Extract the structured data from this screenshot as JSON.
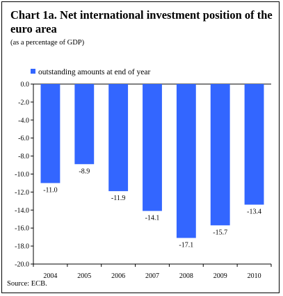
{
  "title": "Chart 1a. Net international investment position of the euro area",
  "subtitle": "(as a percentage of GDP)",
  "source": "Source: ECB.",
  "colors": {
    "bar": "#3366ff",
    "axis": "#000000"
  },
  "chart_data": {
    "type": "bar",
    "title": "Chart 1a. Net international investment position of the euro area",
    "subtitle": "(as a percentage of GDP)",
    "categories": [
      "2004",
      "2005",
      "2006",
      "2007",
      "2008",
      "2009",
      "2010"
    ],
    "series": [
      {
        "name": "outstanding amounts at end of year",
        "values": [
          -11.0,
          -8.9,
          -11.9,
          -14.1,
          -17.1,
          -15.7,
          -13.4
        ]
      }
    ],
    "data_labels": [
      "-11.0",
      "-8.9",
      "-11.9",
      "-14.1",
      "-17.1",
      "-15.7",
      "-13.4"
    ],
    "yticks": [
      "0.0",
      "-2.0",
      "-4.0",
      "-6.0",
      "-8.0",
      "-10.0",
      "-12.0",
      "-14.0",
      "-16.0",
      "-18.0",
      "-20.0"
    ],
    "ylim": [
      -20,
      0
    ],
    "xlabel": "",
    "ylabel": "",
    "grid": false,
    "legend_position": "top-left"
  }
}
